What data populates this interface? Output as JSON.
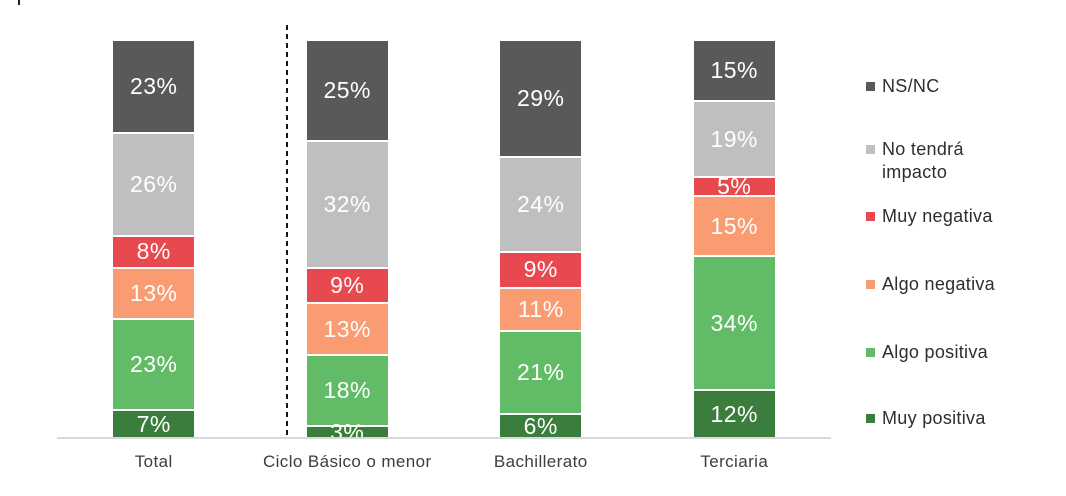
{
  "chart_data": {
    "type": "bar",
    "variant": "stacked-100-percent-column",
    "title": "",
    "unit": "%",
    "categories": [
      "Total",
      "Ciclo Básico o menor",
      "Bachillerato",
      "Terciaria"
    ],
    "stack_order": "top-to-bottom",
    "series": [
      {
        "name": "NS/NC",
        "color": "#595959",
        "values": [
          23,
          25,
          29,
          15
        ]
      },
      {
        "name": "No tendrá impacto",
        "color": "#bfbfbf",
        "values": [
          26,
          32,
          24,
          19
        ]
      },
      {
        "name": "Muy negativa",
        "color": "#e8494e",
        "values": [
          8,
          9,
          9,
          5
        ]
      },
      {
        "name": "Algo negativa",
        "color": "#f99c71",
        "values": [
          13,
          13,
          11,
          15
        ]
      },
      {
        "name": "Algo positiva",
        "color": "#62bb66",
        "values": [
          23,
          18,
          21,
          34
        ]
      },
      {
        "name": "Muy positiva",
        "color": "#3a7d3c",
        "values": [
          7,
          3,
          6,
          12
        ]
      }
    ],
    "legend": {
      "position": "right",
      "items": [
        {
          "label": "NS/NC",
          "color": "#595959"
        },
        {
          "label": "No tendrá impacto",
          "color": "#bfbfbf"
        },
        {
          "label": "Muy negativa",
          "color": "#e8494e"
        },
        {
          "label": "Algo negativa",
          "color": "#f99c71"
        },
        {
          "label": "Algo positiva",
          "color": "#62bb66"
        },
        {
          "label": "Muy positiva",
          "color": "#3a7d3c"
        }
      ]
    },
    "layout_hints": {
      "ylim": [
        0,
        100
      ],
      "gridlines": false,
      "data_labels": "inside-white",
      "dashed_separator_after_category": "Total",
      "baseline_color": "#d9d9d9"
    }
  }
}
